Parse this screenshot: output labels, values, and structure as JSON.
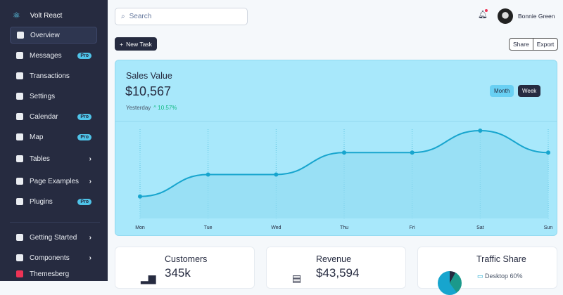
{
  "sidebar": {
    "brand": "Volt React",
    "items": [
      {
        "label": "Overview",
        "active": true
      },
      {
        "label": "Messages",
        "badge": "Pro"
      },
      {
        "label": "Transactions"
      },
      {
        "label": "Settings"
      },
      {
        "label": "Calendar",
        "badge": "Pro"
      },
      {
        "label": "Map",
        "badge": "Pro"
      },
      {
        "label": "Tables",
        "chevron": true
      },
      {
        "label": "Page Examples",
        "chevron": true
      },
      {
        "label": "Plugins",
        "badge": "Pro"
      }
    ],
    "bottom_items": [
      {
        "label": "Getting Started"
      },
      {
        "label": "Components"
      },
      {
        "label": "Themesberg"
      }
    ]
  },
  "header": {
    "search_placeholder": "Search",
    "user_name": "Bonnie Green"
  },
  "toolbar": {
    "new_task": "New Task",
    "share": "Share",
    "export": "Export"
  },
  "sales": {
    "title": "Sales Value",
    "value": "$10,567",
    "period_label": "Yesterday",
    "change": "10.57%",
    "month": "Month",
    "week": "Week"
  },
  "chart_data": {
    "type": "area",
    "title": "Sales Value",
    "categories": [
      "Mon",
      "Tue",
      "Wed",
      "Thu",
      "Fri",
      "Sat",
      "Sun"
    ],
    "values": [
      1,
      2,
      2,
      3,
      3,
      4,
      3
    ],
    "ylim": [
      0,
      4
    ],
    "color": "#17a5ce"
  },
  "stats": [
    {
      "title": "Customers",
      "value": "345k"
    },
    {
      "title": "Revenue",
      "value": "$43,594"
    },
    {
      "title": "Traffic Share",
      "legend": "Desktop 60%"
    }
  ]
}
